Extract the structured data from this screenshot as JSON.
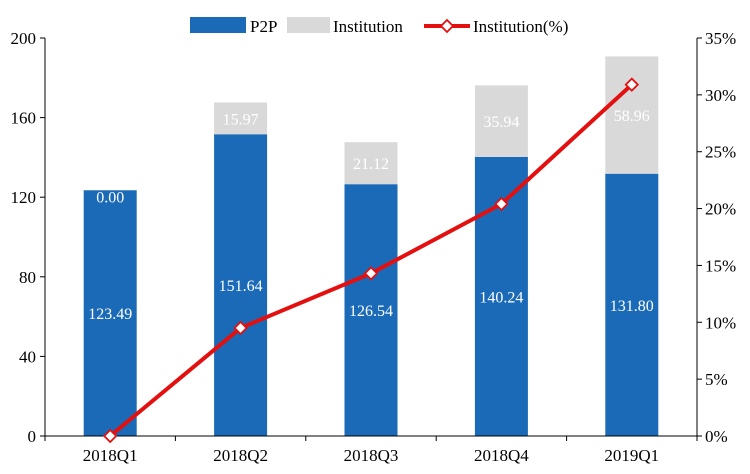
{
  "chart_data": {
    "type": "bar",
    "stacked": true,
    "categories": [
      "2018Q1",
      "2018Q2",
      "2018Q3",
      "2018Q4",
      "2019Q1"
    ],
    "series": [
      {
        "name": "P2P",
        "type": "bar",
        "axis": "left",
        "color": "#1a6ab7",
        "values": [
          123.49,
          151.64,
          126.54,
          140.24,
          131.8
        ],
        "labels": [
          "123.49",
          "151.64",
          "126.54",
          "140.24",
          "131.80"
        ]
      },
      {
        "name": "Institution",
        "type": "bar",
        "axis": "left",
        "color": "#d9d9d9",
        "values": [
          0.0,
          15.97,
          21.12,
          35.94,
          58.96
        ],
        "labels": [
          "0.00",
          "15.97",
          "21.12",
          "35.94",
          "58.96"
        ]
      },
      {
        "name": "Institution(%)",
        "type": "line",
        "axis": "right",
        "color": "#e3100f",
        "marker": "diamond",
        "values": [
          0,
          9.5,
          14.3,
          20.4,
          30.9
        ]
      }
    ],
    "left_axis": {
      "ylim": [
        0,
        200
      ],
      "ticks": [
        0,
        40,
        80,
        120,
        160,
        200
      ],
      "tick_labels": [
        "0",
        "40",
        "80",
        "120",
        "160",
        "200"
      ]
    },
    "right_axis": {
      "ylim": [
        0,
        35
      ],
      "ticks": [
        0,
        5,
        10,
        15,
        20,
        25,
        30,
        35
      ],
      "tick_labels": [
        "0%",
        "5%",
        "10%",
        "15%",
        "20%",
        "25%",
        "30%",
        "35%"
      ]
    },
    "legend_position": "top-center",
    "grid": false
  }
}
